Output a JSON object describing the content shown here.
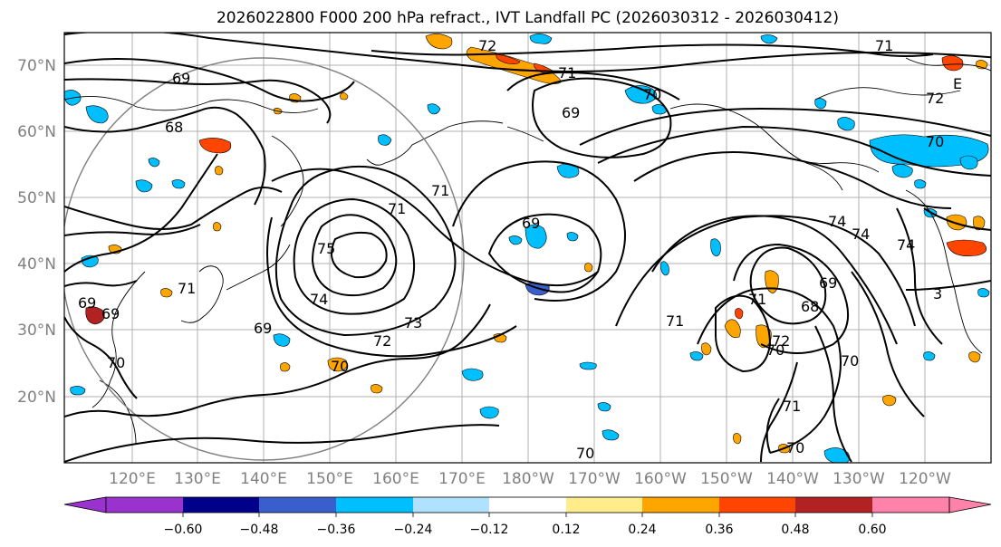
{
  "title": "2026022800 F000 200 hPa refract., IVT Landfall PC (2026030312 - 2026030412)",
  "map": {
    "lat_labels": [
      "70°N",
      "60°N",
      "50°N",
      "40°N",
      "30°N",
      "20°N"
    ],
    "lon_labels": [
      "120°E",
      "130°E",
      "140°E",
      "150°E",
      "160°E",
      "170°E",
      "180°W",
      "170°W",
      "160°W",
      "150°W",
      "140°W",
      "130°W",
      "120°W"
    ],
    "contour_labels": [
      "72",
      "71",
      "69",
      "70",
      "69",
      "68",
      "71",
      "71",
      "69",
      "75",
      "74",
      "73",
      "72",
      "69",
      "69",
      "70",
      "70",
      "69",
      "71",
      "74",
      "71",
      "69",
      "68",
      "71",
      "72",
      "70",
      "71",
      "70",
      "70",
      "74",
      "74",
      "72",
      "70",
      "71",
      "70",
      "3",
      "E"
    ],
    "colors": {
      "contour": "#000000",
      "grid": "#b0b0b0",
      "circle": "#808080",
      "tick_label": "#808080"
    }
  },
  "colorbar": {
    "ticks": [
      "−0.60",
      "−0.48",
      "−0.36",
      "−0.24",
      "−0.12",
      "0.12",
      "0.24",
      "0.36",
      "0.48",
      "0.60"
    ],
    "colors": [
      "#9a32cd",
      "#00008b",
      "#3a5fcd",
      "#00bfff",
      "#b0e2ff",
      "#ffffff",
      "#ffec8b",
      "#ffa500",
      "#ff4500",
      "#b22222",
      "#ff82ab"
    ]
  }
}
